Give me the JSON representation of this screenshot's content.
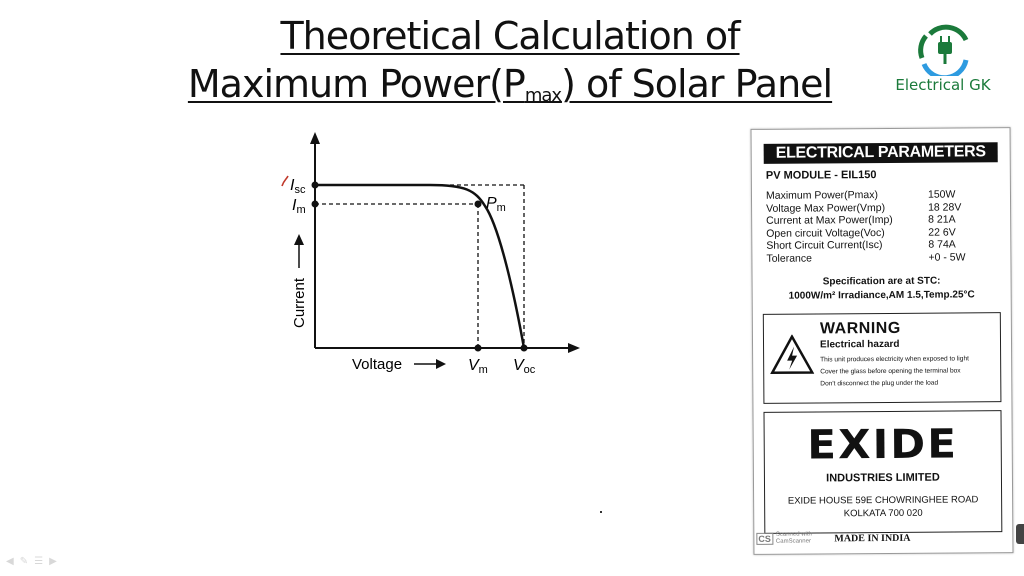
{
  "title": {
    "line1": "Theoretical Calculation of",
    "line2_pre": "Maximum Power(P",
    "line2_sub": "max",
    "line2_post": ") of Solar Panel"
  },
  "brand": {
    "name": "Electrical GK",
    "color": "#1b7a3b",
    "icon": "plug-logo-icon"
  },
  "graph": {
    "isc_label": "I",
    "isc_sub": "sc",
    "im_label": "I",
    "im_sub": "m",
    "pm_label": "P",
    "pm_sub": "m",
    "vm_label": "V",
    "vm_sub": "m",
    "voc_label": "V",
    "voc_sub": "oc",
    "x_axis_label": "Voltage",
    "y_axis_label": "Current"
  },
  "card": {
    "header": "ELECTRICAL PARAMETERS",
    "model": "PV MODULE - EIL150",
    "params": [
      {
        "key": "Maximum Power(Pmax)",
        "value": "150W"
      },
      {
        "key": "Voltage Max  Power(Vmp)",
        "value": "18 28V"
      },
      {
        "key": "Current at Max  Power(Imp)",
        "value": "8 21A"
      },
      {
        "key": "Open circuit Voltage(Voc)",
        "value": "22 6V"
      },
      {
        "key": "Short Circuit Current(Isc)",
        "value": "8 74A"
      },
      {
        "key": "Tolerance",
        "value": "+0 - 5W"
      }
    ],
    "stc_line1": "Specification are at STC:",
    "stc_line2": "1000W/m² Irradiance,AM 1.5,Temp.25°C",
    "warning_title": "WARNING",
    "warning_sub": "Electrical hazard",
    "warning_lines": [
      "This unit produces electricity when exposed to light",
      "Cover the glass before opening the terminal box",
      "Don't disconnect the plug under the load"
    ],
    "maker_logo": "EXIDE",
    "maker_name": "INDUSTRIES LIMITED",
    "address1": "EXIDE HOUSE 59E CHOWRINGHEE ROAD",
    "address2": "KOLKATA 700 020",
    "scanner_tag": "CS",
    "scanner_text1": "Scanned with",
    "scanner_text2": "CamScanner",
    "made_in": "MADE IN INDIA"
  }
}
